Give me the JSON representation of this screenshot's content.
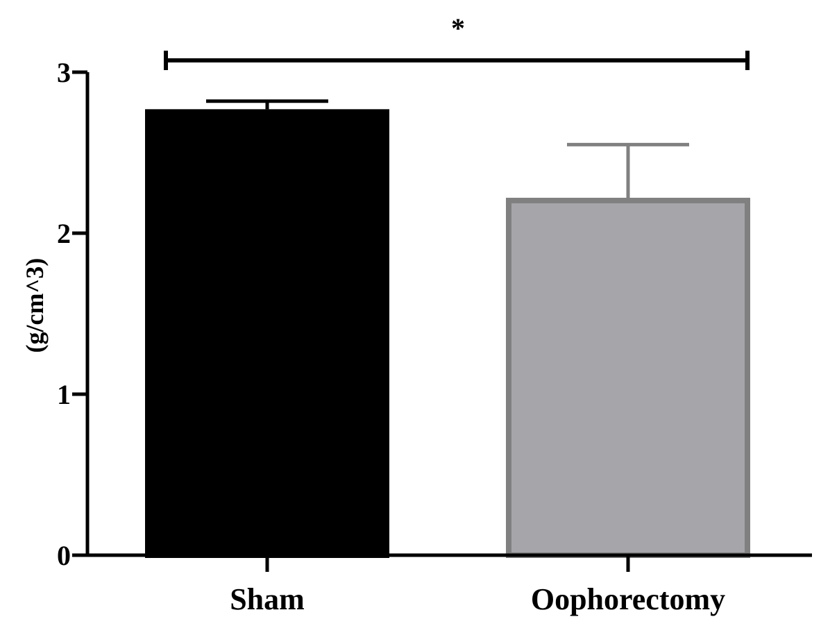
{
  "chart_data": {
    "type": "bar",
    "categories": [
      "Sham",
      "Oophorectomy"
    ],
    "values": [
      2.77,
      2.22
    ],
    "error_upper": [
      0.05,
      0.33
    ],
    "ylabel": "(g/cm^3)",
    "xlabel": "",
    "title": "",
    "ylim": [
      0,
      3
    ],
    "yticks": [
      0,
      1,
      2,
      3
    ],
    "ytick_labels": [
      "0",
      "1",
      "2",
      "3"
    ],
    "bar_colors": [
      "#000000",
      "#a6a6aa"
    ],
    "bar_edge_colors": [
      "#000000",
      "#808080"
    ],
    "error_bar_colors": [
      "#000000",
      "#808080"
    ],
    "significance": {
      "label": "*",
      "from": "Sham",
      "to": "Oophorectomy"
    },
    "grid": false,
    "legend": "none"
  }
}
